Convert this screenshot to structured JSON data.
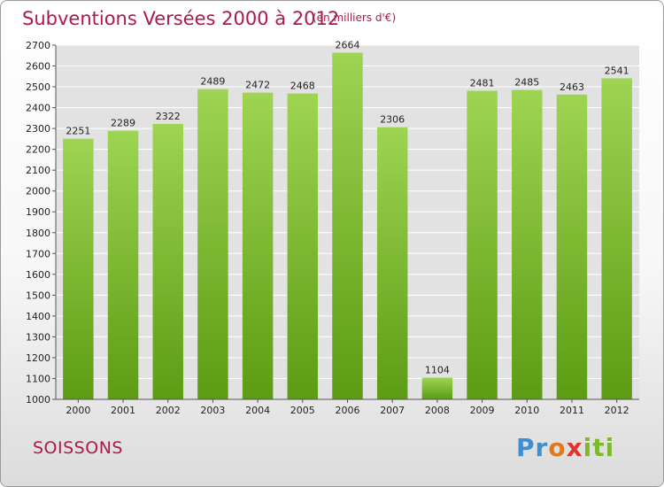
{
  "header": {
    "title": "Subventions Versées 2000 à 2012",
    "unit": "(en milliers d'€)"
  },
  "footer": {
    "city": "SOISSONS",
    "logo_letters": [
      "P",
      "r",
      "o",
      "x",
      "i",
      "t",
      "i"
    ],
    "logo_colors": [
      "#3f8fd0",
      "#3f8fd0",
      "#e07a1f",
      "#e2362c",
      "#7cb92f",
      "#7cb92f",
      "#7cb92f"
    ]
  },
  "colors": {
    "bar_top": "#9ed452",
    "bar_bottom": "#5c9c14",
    "grid": "#ffffff",
    "axis": "#555555",
    "accent": "#b0174f"
  },
  "chart_data": {
    "type": "bar",
    "categories": [
      "2000",
      "2001",
      "2002",
      "2003",
      "2004",
      "2005",
      "2006",
      "2007",
      "2008",
      "2009",
      "2010",
      "2011",
      "2012"
    ],
    "values": [
      2251,
      2289,
      2322,
      2489,
      2472,
      2468,
      2664,
      2306,
      1104,
      2481,
      2485,
      2463,
      2541
    ],
    "ylim": [
      1000,
      2700
    ],
    "yticks": [
      1000,
      1100,
      1200,
      1300,
      1400,
      1500,
      1600,
      1700,
      1800,
      1900,
      2000,
      2100,
      2200,
      2300,
      2400,
      2500,
      2600,
      2700
    ],
    "grid": true,
    "data_labels": true
  }
}
